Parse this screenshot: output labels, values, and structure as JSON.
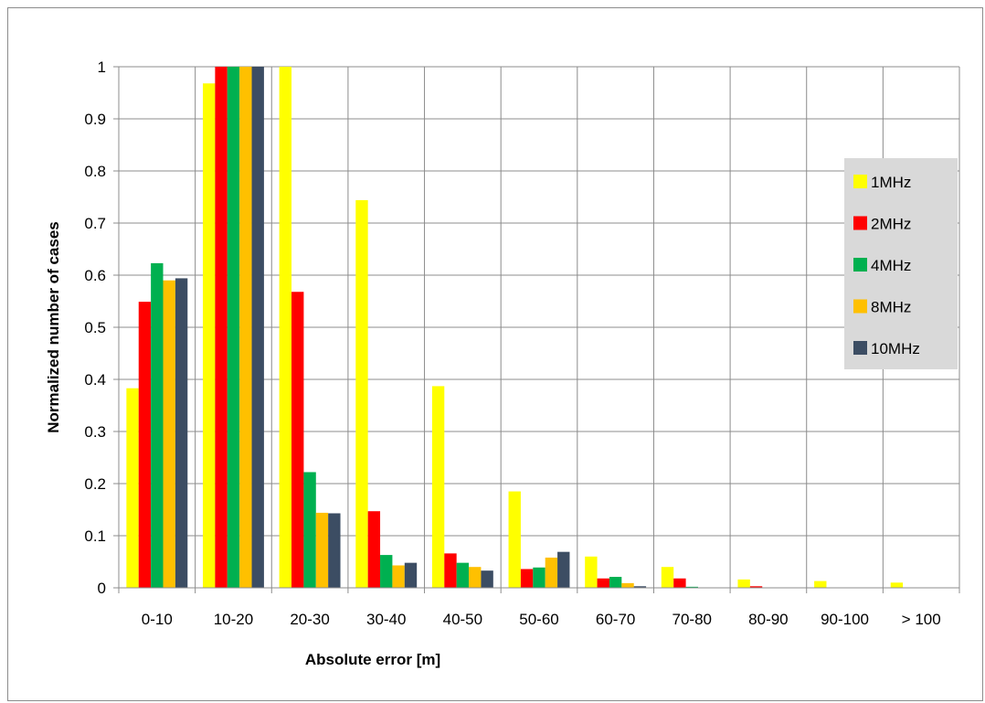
{
  "chart_data": {
    "type": "bar",
    "title": "",
    "xlabel": "Absolute error [m]",
    "ylabel": "Normalized number of cases",
    "ylim": [
      0,
      1
    ],
    "yticks": [
      "0",
      "0.1",
      "0.2",
      "0.3",
      "0.4",
      "0.5",
      "0.6",
      "0.7",
      "0.8",
      "0.9",
      "1"
    ],
    "grid": true,
    "legend_position": "right",
    "categories": [
      "0-10",
      "10-20",
      "20-30",
      "30-40",
      "40-50",
      "50-60",
      "60-70",
      "70-80",
      "80-90",
      "90-100",
      "> 100"
    ],
    "series": [
      {
        "name": "1MHz",
        "color": "#ffff00",
        "values": [
          0.383,
          0.968,
          1.0,
          0.744,
          0.387,
          0.185,
          0.06,
          0.04,
          0.016,
          0.013,
          0.01
        ]
      },
      {
        "name": "2MHz",
        "color": "#ff0000",
        "values": [
          0.549,
          1.0,
          0.568,
          0.147,
          0.066,
          0.036,
          0.018,
          0.018,
          0.003,
          0,
          0
        ]
      },
      {
        "name": "4MHz",
        "color": "#00b050",
        "values": [
          0.623,
          1.0,
          0.222,
          0.063,
          0.048,
          0.039,
          0.021,
          0.002,
          0,
          0,
          0
        ]
      },
      {
        "name": "8MHz",
        "color": "#ffc000",
        "values": [
          0.59,
          1.0,
          0.144,
          0.043,
          0.04,
          0.058,
          0.009,
          0,
          0,
          0,
          0
        ]
      },
      {
        "name": "10MHz",
        "color": "#3c4d63",
        "values": [
          0.594,
          1.0,
          0.143,
          0.048,
          0.033,
          0.069,
          0.003,
          0,
          0,
          0,
          0
        ]
      }
    ]
  }
}
